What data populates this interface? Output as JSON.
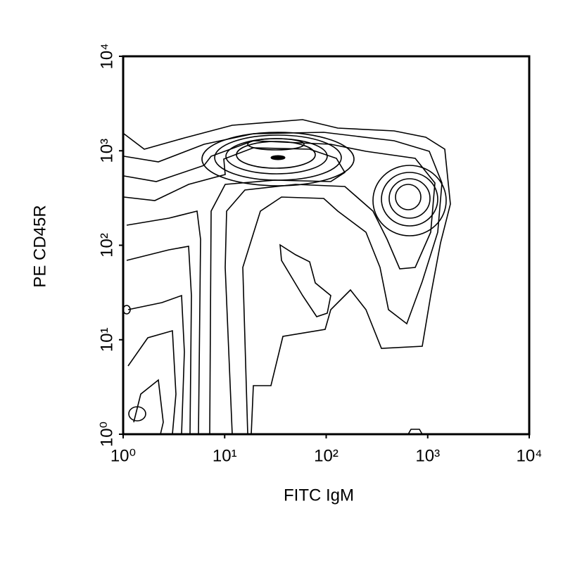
{
  "chart_data": {
    "type": "contour",
    "x_label": "FITC IgM",
    "y_label": "PE CD45R",
    "xlim": [
      1,
      10000
    ],
    "ylim": [
      1,
      10000
    ],
    "log_x": true,
    "log_y": true,
    "xticks": [
      {
        "value": 1,
        "label": "10⁰"
      },
      {
        "value": 10,
        "label": "10¹"
      },
      {
        "value": 100,
        "label": "10²"
      },
      {
        "value": 1000,
        "label": "10³"
      },
      {
        "value": 10000,
        "label": "10⁴"
      }
    ],
    "yticks": [
      {
        "value": 1,
        "label": "10⁰"
      },
      {
        "value": 10,
        "label": "10¹"
      },
      {
        "value": 100,
        "label": "10²"
      },
      {
        "value": 1000,
        "label": "10³"
      },
      {
        "value": 10000,
        "label": "10⁴"
      }
    ],
    "color": "#000000"
  }
}
